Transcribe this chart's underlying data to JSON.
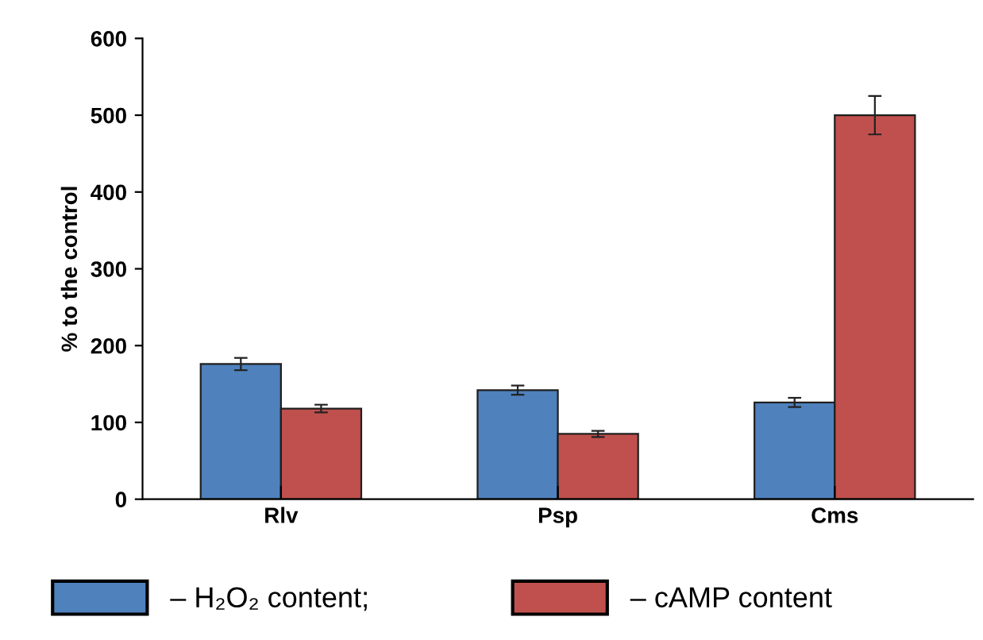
{
  "chart_data": {
    "type": "bar",
    "ylabel": "% to the control",
    "categories": [
      "Rlv",
      "Psp",
      "Cms"
    ],
    "series": [
      {
        "name": "– H₂O₂ content;",
        "color": "#4f81bd",
        "values": [
          176,
          142,
          126
        ],
        "errors": [
          8,
          6,
          6
        ]
      },
      {
        "name": "– cAMP content",
        "color": "#c0504d",
        "values": [
          118,
          85,
          500
        ],
        "errors": [
          5,
          4,
          25
        ]
      }
    ],
    "ylim": [
      0,
      600
    ],
    "yticks": [
      0,
      100,
      200,
      300,
      400,
      500,
      600
    ],
    "grid": false,
    "legend": "bottom"
  }
}
